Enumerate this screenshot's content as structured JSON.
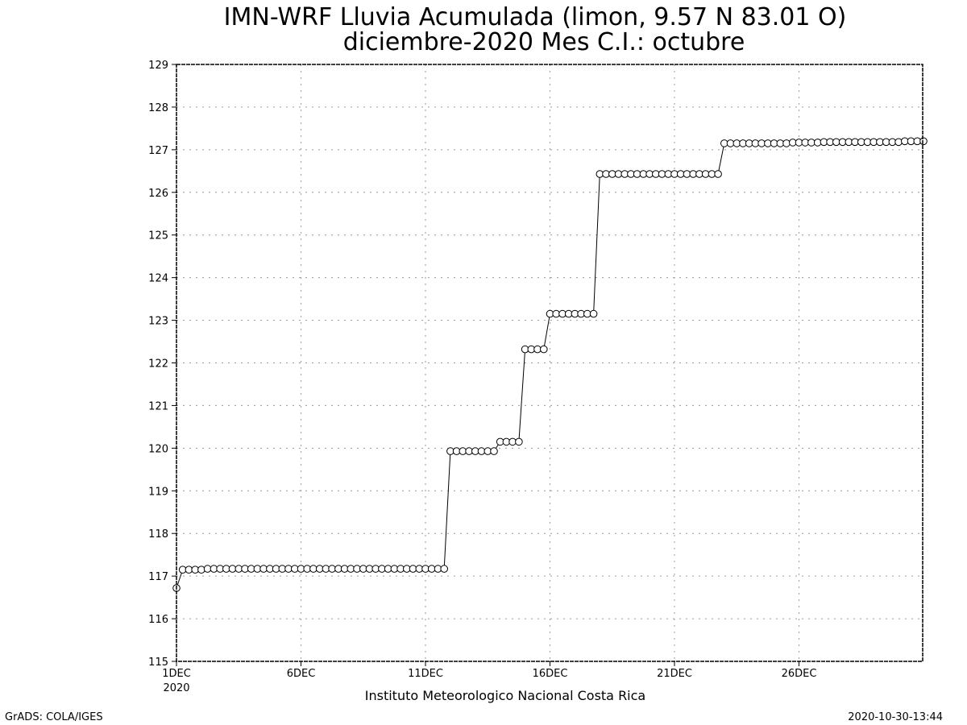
{
  "title_line1": "IMN-WRF  Lluvia Acumulada (limon, 9.57  N 83.01  O)",
  "title_line2": "diciembre-2020 Mes C.I.: octubre",
  "source": "Instituto Meteorologico Nacional Costa Rica",
  "credit": "GrADS: COLA/IGES",
  "timestamp": "2020-10-30-13:44",
  "chart_data": {
    "type": "line",
    "marker": "open-circle",
    "grid": true,
    "ylim": [
      115,
      129
    ],
    "yticks": [
      115,
      116,
      117,
      118,
      119,
      120,
      121,
      122,
      123,
      124,
      125,
      126,
      127,
      128,
      129
    ],
    "xlim": [
      1,
      31
    ],
    "xticks": [
      {
        "day": 1,
        "label": "1DEC",
        "sublabel": "2020"
      },
      {
        "day": 6,
        "label": "6DEC"
      },
      {
        "day": 11,
        "label": "11DEC"
      },
      {
        "day": 16,
        "label": "16DEC"
      },
      {
        "day": 21,
        "label": "21DEC"
      },
      {
        "day": 26,
        "label": "26DEC"
      }
    ],
    "x_step_hours": 6,
    "x_start_day": 1,
    "values": [
      116.72,
      117.15,
      117.15,
      117.15,
      117.15,
      117.17,
      117.17,
      117.17,
      117.17,
      117.17,
      117.17,
      117.17,
      117.17,
      117.17,
      117.17,
      117.17,
      117.17,
      117.17,
      117.17,
      117.17,
      117.17,
      117.17,
      117.17,
      117.17,
      117.17,
      117.17,
      117.17,
      117.17,
      117.17,
      117.17,
      117.17,
      117.17,
      117.17,
      117.17,
      117.17,
      117.17,
      117.17,
      117.17,
      117.17,
      117.17,
      117.17,
      117.17,
      117.17,
      117.17,
      119.93,
      119.93,
      119.93,
      119.93,
      119.93,
      119.93,
      119.93,
      119.93,
      120.15,
      120.15,
      120.15,
      120.15,
      122.32,
      122.32,
      122.32,
      122.32,
      123.15,
      123.15,
      123.15,
      123.15,
      123.15,
      123.15,
      123.15,
      123.15,
      126.43,
      126.43,
      126.43,
      126.43,
      126.43,
      126.43,
      126.43,
      126.43,
      126.43,
      126.43,
      126.43,
      126.43,
      126.43,
      126.43,
      126.43,
      126.43,
      126.43,
      126.43,
      126.43,
      126.43,
      127.15,
      127.15,
      127.15,
      127.15,
      127.15,
      127.15,
      127.15,
      127.15,
      127.15,
      127.15,
      127.15,
      127.17,
      127.17,
      127.17,
      127.17,
      127.17,
      127.18,
      127.18,
      127.18,
      127.18,
      127.18,
      127.18,
      127.18,
      127.18,
      127.18,
      127.18,
      127.18,
      127.18,
      127.18,
      127.2,
      127.2,
      127.2,
      127.2
    ]
  }
}
